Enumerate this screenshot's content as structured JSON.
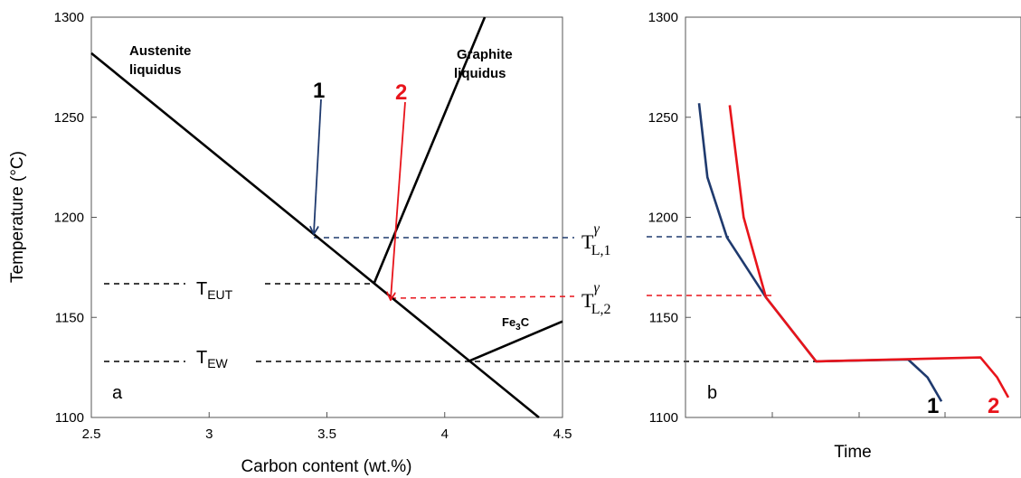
{
  "chart_data": [
    {
      "panel": "a",
      "type": "line",
      "xlabel": "Carbon content (wt.%)",
      "ylabel": "Temperature (°C)",
      "xlim": [
        2.5,
        4.5
      ],
      "ylim": [
        1100,
        1300
      ],
      "xticks": [
        "2.5",
        "3",
        "3.5",
        "4",
        "4.5"
      ],
      "yticks": [
        "1100",
        "1150",
        "1200",
        "1250",
        "1300"
      ],
      "series": [
        {
          "key": "austenite",
          "x": [
            2.5,
            4.4
          ],
          "y": [
            1282,
            1100
          ]
        },
        {
          "key": "graphite",
          "x": [
            3.7,
            4.17
          ],
          "y": [
            1167,
            1300
          ]
        },
        {
          "key": "fe3c",
          "x": [
            4.1,
            4.5
          ],
          "y": [
            1128,
            1148
          ]
        }
      ],
      "annotations": {
        "austenite_line1": "Austenite",
        "austenite_line2": "liquidus",
        "graphite_line1": "Graphite",
        "graphite_line2": "liquidus",
        "fe3c_main": "Fe",
        "fe3c_sub": "3",
        "fe3c_end": "C",
        "t_eut_main": "T",
        "t_eut_sub": "EUT",
        "t_ew_main": "T",
        "t_ew_sub": "EW",
        "panel_label": "a",
        "arrow1_label": "1",
        "arrow2_label": "2"
      },
      "reference_lines": [
        {
          "key": "t_eut",
          "y": 1167
        },
        {
          "key": "t_ew",
          "y": 1128
        }
      ],
      "arrows": [
        {
          "key": "1",
          "color": "#1f3a6e",
          "from": [
            3.47,
            1262
          ],
          "to": [
            3.45,
            1190
          ]
        },
        {
          "key": "2",
          "color": "#e8141b",
          "from": [
            3.85,
            1262
          ],
          "to": [
            3.79,
            1160
          ]
        }
      ]
    },
    {
      "panel": "b",
      "type": "line",
      "xlabel": "Time",
      "ylim": [
        1100,
        1300
      ],
      "yticks": [
        "1100",
        "1150",
        "1200",
        "1250",
        "1300"
      ],
      "series": [
        {
          "name": "1",
          "color": "#1f3a6e",
          "t": [
            0.0,
            0.03,
            0.1,
            0.24,
            0.42,
            0.75,
            0.82,
            0.87
          ],
          "y": [
            1257,
            1220,
            1190,
            1160,
            1128,
            1129,
            1120,
            1108
          ]
        },
        {
          "name": "2",
          "color": "#e8141b",
          "t": [
            0.11,
            0.16,
            0.24,
            0.42,
            1.01,
            1.07,
            1.11
          ],
          "y": [
            1256,
            1200,
            1160,
            1128,
            1130,
            1120,
            1110
          ]
        }
      ],
      "annotations": {
        "panel_label": "b",
        "tl1_main": "T",
        "tl1_sup": "γ",
        "tl1_sub": "L,1",
        "tl2_main": "T",
        "tl2_sup": "γ",
        "tl2_sub": "L,2",
        "curve1_label": "1",
        "curve2_label": "2"
      }
    }
  ],
  "colors": {
    "blue": "#1f3a6e",
    "red": "#e8141b",
    "black": "#000000"
  }
}
